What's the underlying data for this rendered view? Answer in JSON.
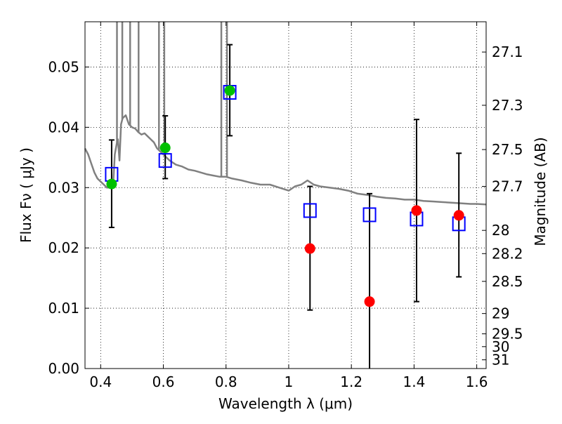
{
  "chart_data": {
    "type": "scatter",
    "xlabel": "Wavelength  λ (μm)",
    "ylabel": "Flux  Fν  ( μJy )",
    "y2label": "Magnitude (AB)",
    "xlim": [
      0.35,
      1.63
    ],
    "ylim": [
      0.0,
      0.0575
    ],
    "grid": true,
    "grid_style": "dotted",
    "xticks": [
      0.4,
      0.6,
      0.8,
      1.0,
      1.2,
      1.4,
      1.6
    ],
    "xtick_labels": [
      "0.4",
      "0.6",
      "0.8",
      "1",
      "1.2",
      "1.4",
      "1.6"
    ],
    "yticks": [
      0.0,
      0.01,
      0.02,
      0.03,
      0.04,
      0.05
    ],
    "ytick_labels": [
      "0.00",
      "0.01",
      "0.02",
      "0.03",
      "0.04",
      "0.05"
    ],
    "magnitude_ticks": [
      {
        "mag": 27.1,
        "label": "27.1"
      },
      {
        "mag": 27.3,
        "label": "27.3"
      },
      {
        "mag": 27.5,
        "label": "27.5"
      },
      {
        "mag": 27.7,
        "label": "27.7"
      },
      {
        "mag": 28.0,
        "label": "28"
      },
      {
        "mag": 28.2,
        "label": "28.2"
      },
      {
        "mag": 28.5,
        "label": "28.5"
      },
      {
        "mag": 29.0,
        "label": "29"
      },
      {
        "mag": 29.5,
        "label": "29.5"
      },
      {
        "mag": 30.0,
        "label": "30"
      },
      {
        "mag": 31.0,
        "label": "31"
      }
    ],
    "colors": {
      "template": "#808080",
      "model_box": "#0000ff",
      "obs_green": "#00c000",
      "obs_red": "#ff0000",
      "errorbar": "#000000",
      "grid": "#000000"
    },
    "series": [
      {
        "type": "line",
        "x": [
          0.35,
          0.36,
          0.37,
          0.38,
          0.39,
          0.4,
          0.41,
          0.42,
          0.43,
          0.44,
          0.445,
          0.452,
          0.455,
          0.46,
          0.465,
          0.47,
          0.48,
          0.49,
          0.5,
          0.51,
          0.52,
          0.53,
          0.54,
          0.55,
          0.56,
          0.57,
          0.58,
          0.6,
          0.62,
          0.64,
          0.66,
          0.68,
          0.7,
          0.72,
          0.74,
          0.76,
          0.78,
          0.8,
          0.82,
          0.85,
          0.88,
          0.91,
          0.94,
          0.97,
          1.0,
          1.02,
          1.04,
          1.06,
          1.08,
          1.1,
          1.13,
          1.16,
          1.19,
          1.22,
          1.25,
          1.28,
          1.31,
          1.34,
          1.37,
          1.4,
          1.43,
          1.46,
          1.49,
          1.52,
          1.55,
          1.58,
          1.6,
          1.63
        ],
        "y": [
          0.0365,
          0.0355,
          0.034,
          0.0325,
          0.0315,
          0.031,
          0.0305,
          0.03,
          0.03,
          0.0305,
          0.0355,
          0.0375,
          0.038,
          0.0345,
          0.0405,
          0.0415,
          0.042,
          0.0405,
          0.04,
          0.0398,
          0.0392,
          0.0388,
          0.039,
          0.0385,
          0.038,
          0.0375,
          0.0365,
          0.0355,
          0.0345,
          0.0338,
          0.0335,
          0.033,
          0.0328,
          0.0325,
          0.0322,
          0.032,
          0.0318,
          0.0318,
          0.0315,
          0.0312,
          0.0308,
          0.0305,
          0.0305,
          0.03,
          0.0295,
          0.0302,
          0.0305,
          0.0312,
          0.0305,
          0.0302,
          0.03,
          0.0298,
          0.0295,
          0.029,
          0.0288,
          0.0285,
          0.0283,
          0.0282,
          0.028,
          0.028,
          0.0278,
          0.0277,
          0.0276,
          0.0275,
          0.0274,
          0.0273,
          0.0273,
          0.0272
        ],
        "spikes": [
          {
            "x": 0.452,
            "y": 0.058
          },
          {
            "x": 0.469,
            "y": 0.058
          },
          {
            "x": 0.494,
            "y": 0.058
          },
          {
            "x": 0.521,
            "y": 0.058
          },
          {
            "x": 0.586,
            "y": 0.058
          },
          {
            "x": 0.603,
            "y": 0.058
          },
          {
            "x": 0.785,
            "y": 0.058
          },
          {
            "x": 0.803,
            "y": 0.058
          }
        ]
      },
      {
        "type": "model_boxes",
        "x": [
          0.435,
          0.606,
          0.812,
          1.068,
          1.258,
          1.408,
          1.543
        ],
        "y": [
          0.0322,
          0.0345,
          0.0458,
          0.0262,
          0.0255,
          0.0248,
          0.024
        ]
      },
      {
        "type": "observations",
        "x": [
          0.435,
          0.606,
          0.812,
          1.068,
          1.258,
          1.408,
          1.543
        ],
        "y": [
          0.0306,
          0.0366,
          0.0461,
          0.0199,
          0.0111,
          0.0262,
          0.0254
        ],
        "yerr_low": [
          0.0234,
          0.0315,
          0.0386,
          0.0097,
          0.0,
          0.0111,
          0.0152
        ],
        "yerr_high": [
          0.0379,
          0.0419,
          0.0537,
          0.0302,
          0.029,
          0.0413,
          0.0357
        ],
        "colors": [
          "green",
          "green",
          "green",
          "red",
          "red",
          "red",
          "red"
        ]
      }
    ]
  }
}
